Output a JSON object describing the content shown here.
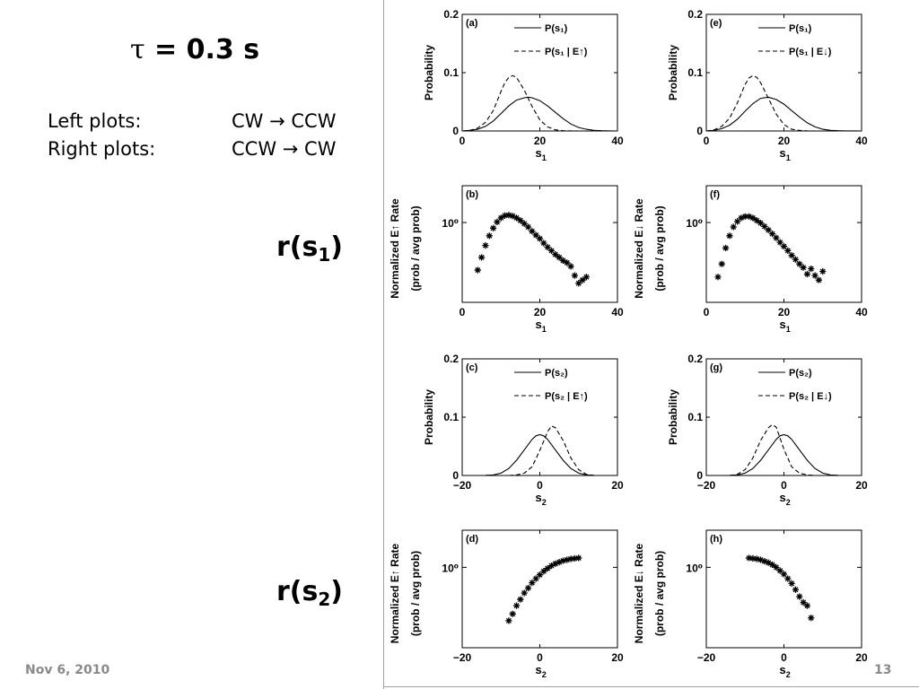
{
  "slide": {
    "title_symbol": "τ",
    "title_rest": " = 0.3 s",
    "left_plots_label": "Left plots:",
    "left_plots_value": "CW → CCW",
    "right_plots_label": "Right plots:",
    "right_plots_value": "CCW → CW",
    "r1_main": "r(s",
    "r1_sub": "1",
    "r1_close": ")",
    "r2_main": "r(s",
    "r2_sub": "2",
    "r2_close": ")",
    "footer_date": "Nov 6, 2010",
    "page_number": "13"
  },
  "chart_data": [
    {
      "id": "a",
      "panel_label": "(a)",
      "type": "line",
      "ylabel": "Probability",
      "xlabel": "s",
      "xlabel_sub": "1",
      "xlim": [
        0,
        40
      ],
      "ylim": [
        0,
        0.2
      ],
      "xticks": [
        0,
        20,
        40
      ],
      "yticks": [
        0,
        0.1,
        0.2
      ],
      "legend_position": "top-right",
      "series": [
        {
          "name": "P(s₁)",
          "style": "solid",
          "x": [
            0,
            2,
            4,
            6,
            8,
            10,
            12,
            14,
            16,
            17,
            18,
            20,
            22,
            24,
            26,
            28,
            30,
            32,
            34,
            36,
            38,
            40
          ],
          "y": [
            0,
            0.001,
            0.003,
            0.008,
            0.017,
            0.03,
            0.043,
            0.053,
            0.057,
            0.058,
            0.057,
            0.052,
            0.043,
            0.032,
            0.021,
            0.012,
            0.006,
            0.003,
            0.001,
            0.0005,
            0.0002,
            0
          ]
        },
        {
          "name": "P(s₁ | E↑)",
          "style": "dashed",
          "x": [
            0,
            2,
            4,
            6,
            8,
            10,
            11,
            12,
            13,
            14,
            16,
            18,
            20,
            22,
            24,
            26,
            28,
            30
          ],
          "y": [
            0,
            0.001,
            0.005,
            0.015,
            0.035,
            0.068,
            0.083,
            0.092,
            0.095,
            0.092,
            0.07,
            0.042,
            0.019,
            0.007,
            0.002,
            0.0005,
            0.0001,
            0
          ]
        }
      ]
    },
    {
      "id": "e",
      "panel_label": "(e)",
      "type": "line",
      "ylabel": "Probability",
      "xlabel": "s",
      "xlabel_sub": "1",
      "xlim": [
        0,
        40
      ],
      "ylim": [
        0,
        0.2
      ],
      "xticks": [
        0,
        20,
        40
      ],
      "yticks": [
        0,
        0.1,
        0.2
      ],
      "legend_position": "top-right",
      "series": [
        {
          "name": "P(s₁)",
          "style": "solid",
          "x": [
            0,
            2,
            4,
            6,
            8,
            10,
            12,
            14,
            16,
            18,
            20,
            22,
            24,
            26,
            28,
            30,
            32,
            34,
            36,
            38,
            40
          ],
          "y": [
            0,
            0.001,
            0.004,
            0.01,
            0.02,
            0.034,
            0.047,
            0.056,
            0.058,
            0.054,
            0.046,
            0.035,
            0.024,
            0.014,
            0.007,
            0.003,
            0.001,
            0.0005,
            0.0002,
            0.0001,
            0
          ]
        },
        {
          "name": "P(s₁ | E↓)",
          "style": "dashed",
          "x": [
            0,
            2,
            4,
            6,
            8,
            10,
            11,
            12,
            13,
            14,
            16,
            18,
            20,
            22,
            24,
            26,
            28
          ],
          "y": [
            0,
            0.002,
            0.008,
            0.022,
            0.048,
            0.08,
            0.091,
            0.095,
            0.092,
            0.083,
            0.056,
            0.029,
            0.011,
            0.003,
            0.001,
            0.0002,
            0
          ]
        }
      ]
    },
    {
      "id": "b",
      "panel_label": "(b)",
      "type": "scatter",
      "log_y": true,
      "ylabel_line1": "Normalized E↑ Rate",
      "ylabel_line2": "(prob / avg prob)",
      "xlabel": "s",
      "xlabel_sub": "1",
      "xlim": [
        0,
        40
      ],
      "ylim_log10": [
        -0.65,
        0.3
      ],
      "xticks": [
        0,
        20,
        40
      ],
      "ytick_label": "10⁰",
      "ytick_value": 1,
      "series": [
        {
          "name": "",
          "x": [
            4,
            5,
            6,
            7,
            8,
            9,
            10,
            11,
            12,
            13,
            14,
            15,
            16,
            17,
            18,
            19,
            20,
            21,
            22,
            23,
            24,
            25,
            26,
            27,
            28,
            29,
            30,
            31,
            32
          ],
          "y": [
            0.41,
            0.52,
            0.65,
            0.78,
            0.9,
            1.01,
            1.09,
            1.14,
            1.15,
            1.13,
            1.09,
            1.04,
            0.98,
            0.92,
            0.85,
            0.79,
            0.74,
            0.68,
            0.63,
            0.59,
            0.55,
            0.52,
            0.49,
            0.47,
            0.44,
            0.37,
            0.32,
            0.34,
            0.36
          ]
        }
      ]
    },
    {
      "id": "f",
      "panel_label": "(f)",
      "type": "scatter",
      "log_y": true,
      "ylabel_line1": "Normalized E↓ Rate",
      "ylabel_line2": "(prob / avg prob)",
      "xlabel": "s",
      "xlabel_sub": "1",
      "xlim": [
        0,
        40
      ],
      "ylim_log10": [
        -0.65,
        0.3
      ],
      "xticks": [
        0,
        20,
        40
      ],
      "ytick_label": "10⁰",
      "ytick_value": 1,
      "series": [
        {
          "name": "",
          "x": [
            3,
            4,
            5,
            6,
            7,
            8,
            9,
            10,
            11,
            12,
            13,
            14,
            15,
            16,
            17,
            18,
            19,
            20,
            21,
            22,
            23,
            24,
            25,
            26,
            27,
            28,
            29,
            30
          ],
          "y": [
            0.36,
            0.46,
            0.62,
            0.78,
            0.92,
            1.02,
            1.09,
            1.12,
            1.12,
            1.09,
            1.04,
            0.99,
            0.93,
            0.87,
            0.81,
            0.75,
            0.69,
            0.64,
            0.59,
            0.54,
            0.5,
            0.46,
            0.43,
            0.38,
            0.42,
            0.37,
            0.34,
            0.4
          ]
        }
      ]
    },
    {
      "id": "c",
      "panel_label": "(c)",
      "type": "line",
      "ylabel": "Probability",
      "xlabel": "s",
      "xlabel_sub": "2",
      "xlim": [
        -20,
        20
      ],
      "ylim": [
        0,
        0.2
      ],
      "xticks": [
        -20,
        0,
        20
      ],
      "yticks": [
        0,
        0.1,
        0.2
      ],
      "legend_position": "top-right",
      "series": [
        {
          "name": "P(s₂)",
          "style": "solid",
          "x": [
            -14,
            -12,
            -10,
            -8,
            -6,
            -4,
            -2,
            -1,
            0,
            1,
            2,
            4,
            6,
            8,
            10,
            12,
            14
          ],
          "y": [
            0.0003,
            0.001,
            0.004,
            0.012,
            0.026,
            0.044,
            0.062,
            0.068,
            0.07,
            0.068,
            0.062,
            0.044,
            0.026,
            0.012,
            0.004,
            0.001,
            0.0003
          ]
        },
        {
          "name": "P(s₂ | E↑)",
          "style": "dashed",
          "x": [
            -8,
            -6,
            -4,
            -2,
            0,
            2,
            3,
            4,
            6,
            8,
            10,
            12,
            14
          ],
          "y": [
            0,
            0.001,
            0.004,
            0.015,
            0.043,
            0.075,
            0.085,
            0.082,
            0.06,
            0.03,
            0.01,
            0.002,
            0
          ]
        }
      ]
    },
    {
      "id": "g",
      "panel_label": "(g)",
      "type": "line",
      "ylabel": "Probability",
      "xlabel": "s",
      "xlabel_sub": "2",
      "xlim": [
        -20,
        20
      ],
      "ylim": [
        0,
        0.2
      ],
      "xticks": [
        -20,
        0,
        20
      ],
      "yticks": [
        0,
        0.1,
        0.2
      ],
      "legend_position": "top-right",
      "series": [
        {
          "name": "P(s₂)",
          "style": "solid",
          "x": [
            -14,
            -12,
            -10,
            -8,
            -6,
            -4,
            -2,
            -1,
            0,
            1,
            2,
            4,
            6,
            8,
            10,
            12,
            14
          ],
          "y": [
            0.0003,
            0.001,
            0.004,
            0.012,
            0.026,
            0.044,
            0.062,
            0.068,
            0.07,
            0.068,
            0.062,
            0.044,
            0.026,
            0.012,
            0.004,
            0.001,
            0.0003
          ]
        },
        {
          "name": "P(s₂ | E↓)",
          "style": "dashed",
          "x": [
            -14,
            -12,
            -10,
            -8,
            -6,
            -4,
            -3,
            -2,
            0,
            2,
            4,
            6,
            8
          ],
          "y": [
            0,
            0.002,
            0.01,
            0.03,
            0.06,
            0.082,
            0.087,
            0.083,
            0.045,
            0.015,
            0.004,
            0.001,
            0
          ]
        }
      ]
    },
    {
      "id": "d",
      "panel_label": "(d)",
      "type": "scatter",
      "log_y": true,
      "ylabel_line1": "Normalized E↑ Rate",
      "ylabel_line2": "(prob / avg prob)",
      "xlabel": "s",
      "xlabel_sub": "2",
      "xlim": [
        -20,
        20
      ],
      "ylim_log10": [
        -0.65,
        0.3
      ],
      "xticks": [
        -20,
        0,
        20
      ],
      "ytick_label": "10⁰",
      "ytick_value": 1,
      "series": [
        {
          "name": "",
          "x": [
            -8,
            -7,
            -6,
            -5,
            -4,
            -3,
            -2,
            -1,
            0,
            1,
            2,
            3,
            4,
            5,
            6,
            7,
            8,
            9,
            10
          ],
          "y": [
            0.37,
            0.42,
            0.49,
            0.55,
            0.62,
            0.68,
            0.75,
            0.81,
            0.87,
            0.93,
            0.98,
            1.03,
            1.07,
            1.1,
            1.13,
            1.15,
            1.17,
            1.18,
            1.19
          ]
        }
      ]
    },
    {
      "id": "h",
      "panel_label": "(h)",
      "type": "scatter",
      "log_y": true,
      "ylabel_line1": "Normalized E↓ Rate",
      "ylabel_line2": "(prob / avg prob)",
      "xlabel": "s",
      "xlabel_sub": "2",
      "xlim": [
        -20,
        20
      ],
      "ylim_log10": [
        -0.65,
        0.3
      ],
      "xticks": [
        -20,
        0,
        20
      ],
      "ytick_label": "10⁰",
      "ytick_value": 1,
      "series": [
        {
          "name": "",
          "x": [
            -9,
            -8,
            -7,
            -6,
            -5,
            -4,
            -3,
            -2,
            -1,
            0,
            1,
            2,
            3,
            4,
            5,
            6,
            7
          ],
          "y": [
            1.19,
            1.18,
            1.17,
            1.15,
            1.12,
            1.09,
            1.05,
            1.0,
            0.94,
            0.88,
            0.81,
            0.74,
            0.66,
            0.58,
            0.52,
            0.49,
            0.39
          ]
        }
      ]
    }
  ]
}
